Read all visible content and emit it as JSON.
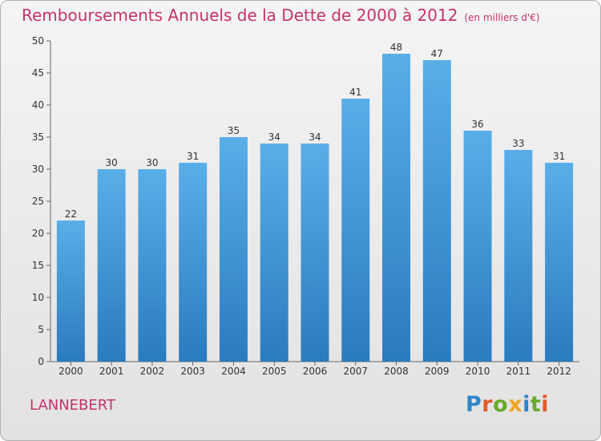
{
  "chart_data": {
    "type": "bar",
    "title": "Remboursements Annuels de la Dette de 2000 à 2012",
    "unit_note": "(en milliers d'€)",
    "categories": [
      "2000",
      "2001",
      "2002",
      "2003",
      "2004",
      "2005",
      "2006",
      "2007",
      "2008",
      "2009",
      "2010",
      "2011",
      "2012"
    ],
    "values": [
      22,
      30,
      30,
      31,
      35,
      34,
      34,
      41,
      48,
      47,
      36,
      33,
      31
    ],
    "xlabel": "",
    "ylabel": "",
    "ylim": [
      0,
      50
    ],
    "yticks": [
      0,
      5,
      10,
      15,
      20,
      25,
      30,
      35,
      40,
      45,
      50
    ],
    "grid": false,
    "colors": {
      "bar_top": "#5aaee8",
      "bar_bottom": "#2a7bbf",
      "title": "#c4336b",
      "axis": "#666666"
    }
  },
  "commune": "LANNEBERT",
  "brand": {
    "letters": [
      {
        "ch": "P",
        "color": "#2e86c8"
      },
      {
        "ch": "r",
        "color": "#e05b2a"
      },
      {
        "ch": "o",
        "color": "#6aaa2a"
      },
      {
        "ch": "x",
        "color": "#f2a51c"
      },
      {
        "ch": "i",
        "color": "#2e86c8"
      },
      {
        "ch": "t",
        "color": "#6aaa2a"
      },
      {
        "ch": "i",
        "color": "#e05b2a"
      }
    ]
  }
}
